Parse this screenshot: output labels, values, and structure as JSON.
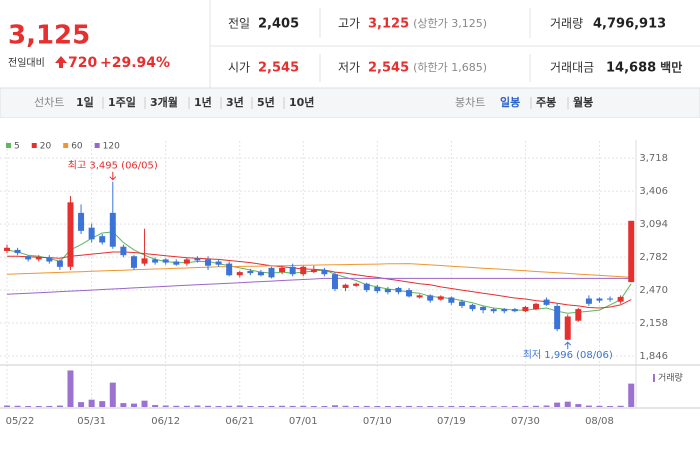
{
  "header": {
    "price": "3,125",
    "change_label": "전일대비",
    "change": "720",
    "change_pct": "+29.94%",
    "fields": [
      {
        "label": "전일",
        "value": "2,405"
      },
      {
        "label": "고가",
        "value": "3,125",
        "note": "(상한가 3,125)"
      },
      {
        "label": "거래량",
        "value": "4,796,913"
      },
      {
        "label": "시가",
        "value": "2,545"
      },
      {
        "label": "저가",
        "value": "2,545",
        "note": "(하한가 1,685)"
      },
      {
        "label": "거래대금",
        "value": "14,688",
        "unit": "백만"
      }
    ]
  },
  "toolbar": {
    "line_label": "선차트",
    "periods": [
      "1일",
      "1주일",
      "3개월",
      "1년",
      "3년",
      "5년",
      "10년"
    ],
    "candle_label": "봉차트",
    "intervals": [
      "일봉",
      "주봉",
      "월봉"
    ]
  },
  "chart_data": {
    "type": "candlestick",
    "categories": [
      "05/22",
      null,
      null,
      null,
      null,
      null,
      null,
      null,
      "05/31",
      null,
      null,
      null,
      null,
      null,
      null,
      "06/12",
      null,
      null,
      null,
      null,
      null,
      null,
      "06/21",
      null,
      null,
      null,
      null,
      null,
      "07/01",
      null,
      null,
      null,
      null,
      null,
      null,
      "07/10",
      null,
      null,
      null,
      null,
      null,
      null,
      "07/19",
      null,
      null,
      null,
      null,
      null,
      null,
      "07/30",
      null,
      null,
      null,
      null,
      null,
      null,
      "08/08",
      null,
      null,
      null
    ],
    "open": [
      2840,
      2850,
      2790,
      2760,
      2780,
      2750,
      2690,
      3200,
      3060,
      2980,
      3200,
      2880,
      2790,
      2720,
      2760,
      2760,
      2740,
      2720,
      2770,
      2760,
      2740,
      2720,
      2610,
      2650,
      2640,
      2680,
      2640,
      2690,
      2620,
      2640,
      2660,
      2620,
      2490,
      2510,
      2530,
      2500,
      2480,
      2490,
      2470,
      2400,
      2420,
      2380,
      2400,
      2360,
      2330,
      2310,
      2290,
      2290,
      2290,
      2270,
      2290,
      2380,
      2320,
      2000,
      2180,
      2390,
      2390,
      2390,
      2360,
      2545
    ],
    "high": [
      2900,
      2870,
      2800,
      2800,
      2800,
      2760,
      3360,
      3280,
      3100,
      3000,
      3495,
      2900,
      2800,
      3050,
      2780,
      2770,
      2760,
      2780,
      2790,
      2790,
      2760,
      2740,
      2650,
      2670,
      2660,
      2690,
      2700,
      2720,
      2700,
      2700,
      2680,
      2640,
      2530,
      2540,
      2540,
      2520,
      2500,
      2500,
      2490,
      2430,
      2430,
      2420,
      2410,
      2380,
      2340,
      2320,
      2300,
      2300,
      2300,
      2320,
      2350,
      2400,
      2340,
      2240,
      2300,
      2420,
      2400,
      2410,
      2420,
      3125
    ],
    "low": [
      2820,
      2800,
      2740,
      2740,
      2720,
      2660,
      2660,
      3000,
      2920,
      2900,
      2860,
      2780,
      2660,
      2700,
      2710,
      2710,
      2700,
      2700,
      2730,
      2660,
      2690,
      2600,
      2590,
      2610,
      2600,
      2580,
      2620,
      2600,
      2600,
      2630,
      2600,
      2460,
      2460,
      2500,
      2450,
      2440,
      2430,
      2430,
      2400,
      2390,
      2350,
      2370,
      2330,
      2300,
      2270,
      2250,
      2250,
      2250,
      2260,
      2260,
      2280,
      2320,
      2080,
      1996,
      2170,
      2320,
      2350,
      2360,
      2340,
      2545
    ],
    "close": [
      2870,
      2820,
      2760,
      2780,
      2740,
      2690,
      3300,
      3030,
      2950,
      2920,
      2880,
      2800,
      2680,
      2770,
      2730,
      2730,
      2710,
      2760,
      2750,
      2700,
      2710,
      2610,
      2640,
      2630,
      2610,
      2590,
      2680,
      2620,
      2690,
      2660,
      2620,
      2480,
      2520,
      2530,
      2470,
      2460,
      2450,
      2450,
      2410,
      2420,
      2370,
      2410,
      2350,
      2320,
      2290,
      2280,
      2270,
      2270,
      2270,
      2310,
      2340,
      2330,
      2100,
      2220,
      2290,
      2340,
      2370,
      2380,
      2405,
      3125
    ],
    "up_color": "#e5302f",
    "down_color": "#3b74d6",
    "series": [
      {
        "name": "5",
        "color": "#5cb85c",
        "values": [
          2850,
          2830,
          2800,
          2790,
          2770,
          2740,
          2850,
          2900,
          2960,
          3010,
          3020,
          2920,
          2850,
          2800,
          2760,
          2740,
          2730,
          2730,
          2740,
          2740,
          2720,
          2700,
          2680,
          2660,
          2640,
          2630,
          2640,
          2630,
          2640,
          2650,
          2660,
          2620,
          2590,
          2560,
          2520,
          2500,
          2480,
          2470,
          2450,
          2440,
          2410,
          2400,
          2390,
          2370,
          2350,
          2320,
          2300,
          2290,
          2280,
          2280,
          2290,
          2300,
          2270,
          2250,
          2260,
          2270,
          2280,
          2330,
          2380,
          2530
        ]
      },
      {
        "name": "20",
        "color": "#e5302f",
        "values": [
          2790,
          2790,
          2785,
          2780,
          2775,
          2770,
          2790,
          2800,
          2810,
          2820,
          2830,
          2830,
          2825,
          2815,
          2805,
          2795,
          2785,
          2775,
          2770,
          2765,
          2760,
          2750,
          2740,
          2730,
          2715,
          2700,
          2690,
          2680,
          2670,
          2665,
          2660,
          2640,
          2630,
          2615,
          2600,
          2590,
          2575,
          2560,
          2545,
          2530,
          2520,
          2500,
          2485,
          2470,
          2455,
          2440,
          2425,
          2410,
          2395,
          2385,
          2370,
          2360,
          2345,
          2330,
          2320,
          2305,
          2300,
          2310,
          2330,
          2380
        ]
      },
      {
        "name": "60",
        "color": "#f0962f",
        "values": [
          2620,
          2623,
          2627,
          2630,
          2634,
          2637,
          2641,
          2644,
          2648,
          2651,
          2655,
          2658,
          2662,
          2665,
          2669,
          2672,
          2676,
          2679,
          2683,
          2686,
          2690,
          2692,
          2694,
          2695,
          2697,
          2699,
          2700,
          2702,
          2704,
          2706,
          2708,
          2709,
          2711,
          2713,
          2715,
          2716,
          2718,
          2719,
          2720,
          2714,
          2708,
          2702,
          2696,
          2689,
          2683,
          2677,
          2671,
          2665,
          2659,
          2652,
          2646,
          2640,
          2634,
          2628,
          2621,
          2615,
          2609,
          2603,
          2597,
          2590
        ]
      },
      {
        "name": "120",
        "color": "#9966cc",
        "values": [
          2430,
          2435,
          2440,
          2445,
          2450,
          2455,
          2460,
          2465,
          2470,
          2475,
          2480,
          2485,
          2490,
          2495,
          2500,
          2505,
          2510,
          2515,
          2520,
          2525,
          2530,
          2535,
          2540,
          2545,
          2550,
          2555,
          2560,
          2565,
          2570,
          2575,
          2580,
          2580,
          2580,
          2580,
          2580,
          2580,
          2580,
          2580,
          2580,
          2580,
          2580,
          2580,
          2580,
          2580,
          2580,
          2580,
          2580,
          2580,
          2580,
          2580,
          2580,
          2580,
          2580,
          2580,
          2580,
          2580,
          2580,
          2580,
          2580,
          2580
        ]
      }
    ],
    "ylim": [
      1780,
      3880
    ],
    "yticks": [
      {
        "value": 1846,
        "label": "1,846"
      },
      {
        "value": 2158,
        "label": "2,158"
      },
      {
        "value": 2470,
        "label": "2,470"
      },
      {
        "value": 2782,
        "label": "2,782"
      },
      {
        "value": 3094,
        "label": "3,094"
      },
      {
        "value": 3406,
        "label": "3,406"
      },
      {
        "value": 3718,
        "label": "3,718"
      }
    ],
    "grid": true,
    "annotations": [
      {
        "text": "최고 3,495 (06/05)",
        "at": "high_max"
      },
      {
        "text": "최저 1,996 (08/06)",
        "at": "low_min"
      }
    ],
    "volume": {
      "name": "거래량",
      "color": "#9b72cf",
      "ylim": [
        0,
        8000000
      ],
      "values": [
        300000,
        250000,
        200000,
        200000,
        220000,
        300000,
        7500000,
        1000000,
        1500000,
        1200000,
        5000000,
        800000,
        700000,
        1300000,
        400000,
        300000,
        250000,
        250000,
        300000,
        250000,
        200000,
        250000,
        300000,
        200000,
        200000,
        220000,
        250000,
        220000,
        250000,
        200000,
        200000,
        350000,
        250000,
        200000,
        220000,
        200000,
        200000,
        200000,
        220000,
        180000,
        200000,
        180000,
        200000,
        200000,
        200000,
        180000,
        180000,
        180000,
        200000,
        220000,
        250000,
        300000,
        900000,
        1100000,
        600000,
        300000,
        250000,
        200000,
        250000,
        4796913
      ]
    }
  }
}
